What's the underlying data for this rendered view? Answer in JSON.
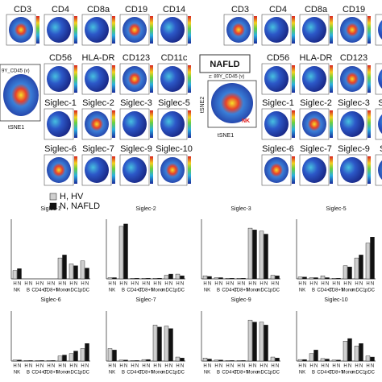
{
  "left_panel": {
    "inset_label": "9Y_CD45 (v)",
    "x_axis": "tSNE1",
    "rows": [
      [
        "CD3",
        "CD4",
        "CD8a",
        "CD19",
        "CD14"
      ],
      [
        "CD56",
        "HLA-DR",
        "CD123",
        "CD11c"
      ],
      [
        "Siglec-1",
        "Siglec-2",
        "Siglec-3",
        "Siglec-5"
      ],
      [
        "Siglec-6",
        "Siglec-7",
        "Siglec-9",
        "Siglec-10"
      ]
    ]
  },
  "right_panel": {
    "group": "NAFLD",
    "inset_label": "z: 89Y_CD45 (v)",
    "y_axis": "tSNE2",
    "x_axis": "tSNE1",
    "cluster_label": "NK",
    "rows": [
      [
        "CD3",
        "CD4",
        "CD8a",
        "CD19",
        "C"
      ],
      [
        "CD56",
        "HLA-DR",
        "CD123",
        "C"
      ],
      [
        "Siglec-1",
        "Siglec-2",
        "Siglec-3",
        "Siglec-"
      ],
      [
        "Siglec-6",
        "Siglec-7",
        "Siglec-9",
        "Siglec"
      ]
    ]
  },
  "bar_figure": {
    "legend": [
      {
        "label": "H, HV",
        "color": "#cfcfcf"
      },
      {
        "label": "N, NAFLD",
        "color": "#111111"
      }
    ],
    "bar_labels": [
      "H",
      "N"
    ],
    "categories": [
      "NK",
      "B",
      "CD4+T",
      "CD8+T",
      "Mono",
      "mDC1",
      "pDC"
    ],
    "ylim": [
      0,
      100
    ],
    "panels": [
      {
        "title": "Siglec-1",
        "values": [
          [
            14,
            0,
            0,
            0,
            35,
            25,
            30
          ],
          [
            17,
            0,
            0,
            0,
            40,
            22,
            18
          ]
        ]
      },
      {
        "title": "Siglec-2",
        "values": [
          [
            2,
            88,
            1,
            1,
            1,
            6,
            8
          ],
          [
            2,
            92,
            1,
            1,
            1,
            8,
            5
          ]
        ]
      },
      {
        "title": "Siglec-3",
        "values": [
          [
            5,
            2,
            1,
            1,
            85,
            80,
            6
          ],
          [
            4,
            2,
            1,
            1,
            82,
            75,
            5
          ]
        ]
      },
      {
        "title": "Siglec-5",
        "values": [
          [
            3,
            2,
            5,
            1,
            22,
            35,
            60
          ],
          [
            3,
            2,
            2,
            1,
            20,
            40,
            70
          ]
        ]
      },
      {
        "title": "Siglec-6",
        "values": [
          [
            2,
            1,
            1,
            1,
            10,
            15,
            25
          ],
          [
            2,
            1,
            1,
            1,
            12,
            20,
            35
          ]
        ]
      },
      {
        "title": "Siglec-7",
        "values": [
          [
            25,
            2,
            1,
            3,
            72,
            70,
            8
          ],
          [
            22,
            2,
            1,
            3,
            68,
            65,
            6
          ]
        ]
      },
      {
        "title": "Siglec-9",
        "values": [
          [
            6,
            2,
            1,
            1,
            82,
            78,
            8
          ],
          [
            4,
            2,
            1,
            1,
            78,
            72,
            6
          ]
        ]
      },
      {
        "title": "Siglec-10",
        "values": [
          [
            3,
            15,
            5,
            2,
            40,
            30,
            10
          ],
          [
            3,
            22,
            4,
            2,
            45,
            35,
            8
          ]
        ]
      }
    ]
  }
}
